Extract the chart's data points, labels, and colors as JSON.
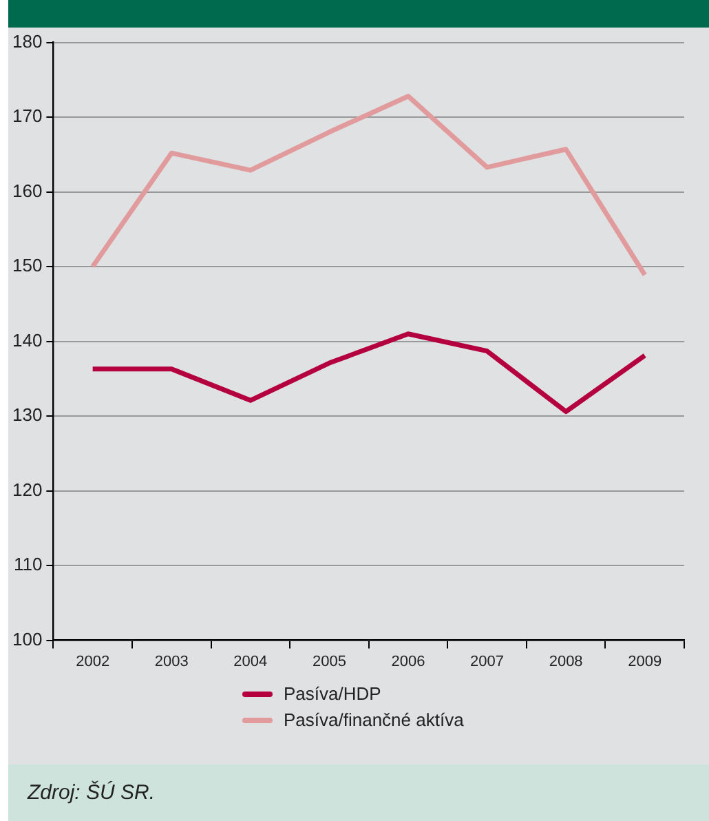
{
  "chart_data": {
    "type": "line",
    "categories": [
      "2002",
      "2003",
      "2004",
      "2005",
      "2006",
      "2007",
      "2008",
      "2009"
    ],
    "series": [
      {
        "name": "Pasíva/HDP",
        "color": "#b5003f",
        "values": [
          136.3,
          136.3,
          132.1,
          137.1,
          141.0,
          138.7,
          130.6,
          138.1
        ]
      },
      {
        "name": "Pasíva/finančné aktíva",
        "color": "#e19b9c",
        "values": [
          150.0,
          165.2,
          162.9,
          168.0,
          172.8,
          163.3,
          165.7,
          148.9
        ]
      }
    ],
    "ylim": [
      100,
      180
    ],
    "yticks": [
      100,
      110,
      120,
      130,
      140,
      150,
      160,
      170,
      180
    ],
    "grid": "y",
    "legend": "bottom",
    "marker": "none",
    "line_style": "solid",
    "annotations": [
      "Zdroj: ŠÚ SR."
    ]
  }
}
